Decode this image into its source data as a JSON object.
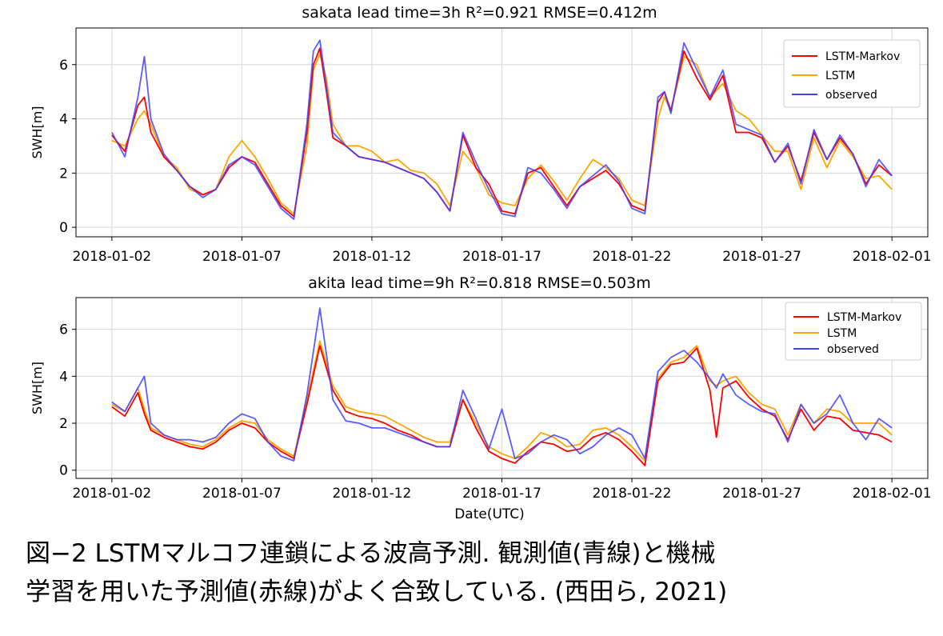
{
  "chart_data": [
    {
      "type": "line",
      "title": "sakata  lead time=3h  R²=0.921  RMSE=0.412m",
      "xlabel": "",
      "ylabel": "SWH[m]",
      "xlim": [
        "2018-01-02",
        "2018-02-01"
      ],
      "ylim": [
        0,
        7
      ],
      "xticks": [
        "2018-01-02",
        "2018-01-07",
        "2018-01-12",
        "2018-01-17",
        "2018-01-22",
        "2018-01-27",
        "2018-02-01"
      ],
      "yticks": [
        0,
        2,
        4,
        6
      ],
      "grid": true,
      "legend_position": "top-right",
      "x": [
        "2018-01-02 00:00",
        "2018-01-02 12:00",
        "2018-01-03 00:00",
        "2018-01-03 06:00",
        "2018-01-03 12:00",
        "2018-01-04 00:00",
        "2018-01-04 12:00",
        "2018-01-05 00:00",
        "2018-01-05 12:00",
        "2018-01-06 00:00",
        "2018-01-06 12:00",
        "2018-01-07 00:00",
        "2018-01-07 12:00",
        "2018-01-08 00:00",
        "2018-01-08 12:00",
        "2018-01-09 00:00",
        "2018-01-09 12:00",
        "2018-01-09 18:00",
        "2018-01-10 00:00",
        "2018-01-10 06:00",
        "2018-01-10 12:00",
        "2018-01-11 00:00",
        "2018-01-11 12:00",
        "2018-01-12 00:00",
        "2018-01-12 12:00",
        "2018-01-13 00:00",
        "2018-01-13 12:00",
        "2018-01-14 00:00",
        "2018-01-14 12:00",
        "2018-01-15 00:00",
        "2018-01-15 12:00",
        "2018-01-16 00:00",
        "2018-01-16 12:00",
        "2018-01-17 00:00",
        "2018-01-17 12:00",
        "2018-01-18 00:00",
        "2018-01-18 12:00",
        "2018-01-19 00:00",
        "2018-01-19 12:00",
        "2018-01-20 00:00",
        "2018-01-20 12:00",
        "2018-01-21 00:00",
        "2018-01-21 12:00",
        "2018-01-22 00:00",
        "2018-01-22 12:00",
        "2018-01-23 00:00",
        "2018-01-23 06:00",
        "2018-01-23 12:00",
        "2018-01-24 00:00",
        "2018-01-24 12:00",
        "2018-01-25 00:00",
        "2018-01-25 12:00",
        "2018-01-26 00:00",
        "2018-01-26 12:00",
        "2018-01-27 00:00",
        "2018-01-27 12:00",
        "2018-01-28 00:00",
        "2018-01-28 12:00",
        "2018-01-29 00:00",
        "2018-01-29 12:00",
        "2018-01-30 00:00",
        "2018-01-30 12:00",
        "2018-01-31 00:00",
        "2018-01-31 12:00",
        "2018-02-01 00:00"
      ],
      "series": [
        {
          "name": "LSTM-Markov",
          "color": "#ff0000",
          "values": [
            3.4,
            2.8,
            4.5,
            4.8,
            3.5,
            2.6,
            2.1,
            1.5,
            1.2,
            1.4,
            2.2,
            2.6,
            2.4,
            1.6,
            0.8,
            0.4,
            3.5,
            6.0,
            6.6,
            5.0,
            3.3,
            3.0,
            2.6,
            2.5,
            2.4,
            2.2,
            2.0,
            1.8,
            1.3,
            0.6,
            3.4,
            2.2,
            1.6,
            0.6,
            0.5,
            2.0,
            2.2,
            1.5,
            0.8,
            1.5,
            1.8,
            2.1,
            1.6,
            0.8,
            0.6,
            4.6,
            5.0,
            4.3,
            6.5,
            5.5,
            4.7,
            5.6,
            3.5,
            3.5,
            3.3,
            2.4,
            3.0,
            1.7,
            3.5,
            2.5,
            3.3,
            2.7,
            1.6,
            2.3,
            1.9
          ]
        },
        {
          "name": "LSTM",
          "color": "#ffa500",
          "values": [
            3.2,
            3.0,
            4.0,
            4.3,
            3.8,
            2.6,
            2.2,
            1.4,
            1.2,
            1.4,
            2.6,
            3.2,
            2.6,
            1.8,
            0.9,
            0.5,
            3.0,
            5.8,
            6.4,
            5.5,
            3.8,
            3.0,
            3.0,
            2.8,
            2.4,
            2.5,
            2.1,
            2.0,
            1.6,
            0.8,
            2.8,
            2.2,
            1.2,
            0.9,
            0.8,
            1.8,
            2.3,
            1.7,
            1.0,
            1.8,
            2.5,
            2.2,
            1.8,
            1.0,
            0.8,
            4.0,
            4.8,
            4.3,
            6.3,
            6.0,
            4.8,
            5.3,
            4.3,
            4.0,
            3.4,
            2.8,
            2.8,
            1.4,
            3.3,
            2.2,
            3.2,
            2.6,
            1.8,
            1.9,
            1.4
          ]
        },
        {
          "name": "observed",
          "color": "#4040ff",
          "values": [
            3.5,
            2.6,
            4.8,
            6.3,
            4.0,
            2.7,
            2.1,
            1.5,
            1.1,
            1.4,
            2.3,
            2.6,
            2.3,
            1.5,
            0.7,
            0.3,
            3.8,
            6.5,
            6.9,
            5.2,
            3.5,
            3.0,
            2.6,
            2.5,
            2.4,
            2.2,
            2.0,
            1.8,
            1.3,
            0.6,
            3.5,
            2.4,
            1.4,
            0.5,
            0.4,
            2.2,
            2.0,
            1.4,
            0.7,
            1.5,
            1.9,
            2.3,
            1.7,
            0.7,
            0.5,
            4.8,
            5.0,
            4.2,
            6.8,
            5.8,
            4.8,
            5.8,
            3.8,
            3.6,
            3.4,
            2.4,
            3.1,
            1.6,
            3.6,
            2.5,
            3.4,
            2.7,
            1.5,
            2.5,
            1.9
          ]
        }
      ]
    },
    {
      "type": "line",
      "title": "akita  lead time=9h  R²=0.818  RMSE=0.503m",
      "xlabel": "Date(UTC)",
      "ylabel": "SWH[m]",
      "xlim": [
        "2018-01-02",
        "2018-02-01"
      ],
      "ylim": [
        0,
        7
      ],
      "xticks": [
        "2018-01-02",
        "2018-01-07",
        "2018-01-12",
        "2018-01-17",
        "2018-01-22",
        "2018-01-27",
        "2018-02-01"
      ],
      "yticks": [
        0,
        2,
        4,
        6
      ],
      "grid": true,
      "legend_position": "top-right",
      "x": [
        "2018-01-02 00:00",
        "2018-01-02 12:00",
        "2018-01-03 00:00",
        "2018-01-03 06:00",
        "2018-01-03 12:00",
        "2018-01-04 00:00",
        "2018-01-04 12:00",
        "2018-01-05 00:00",
        "2018-01-05 12:00",
        "2018-01-06 00:00",
        "2018-01-06 12:00",
        "2018-01-07 00:00",
        "2018-01-07 12:00",
        "2018-01-08 00:00",
        "2018-01-08 12:00",
        "2018-01-09 00:00",
        "2018-01-09 12:00",
        "2018-01-10 00:00",
        "2018-01-10 12:00",
        "2018-01-11 00:00",
        "2018-01-11 12:00",
        "2018-01-12 00:00",
        "2018-01-12 12:00",
        "2018-01-13 00:00",
        "2018-01-13 12:00",
        "2018-01-14 00:00",
        "2018-01-14 12:00",
        "2018-01-15 00:00",
        "2018-01-15 12:00",
        "2018-01-16 00:00",
        "2018-01-16 12:00",
        "2018-01-17 00:00",
        "2018-01-17 12:00",
        "2018-01-18 00:00",
        "2018-01-18 12:00",
        "2018-01-19 00:00",
        "2018-01-19 12:00",
        "2018-01-20 00:00",
        "2018-01-20 12:00",
        "2018-01-21 00:00",
        "2018-01-21 12:00",
        "2018-01-22 00:00",
        "2018-01-22 12:00",
        "2018-01-23 00:00",
        "2018-01-23 12:00",
        "2018-01-24 00:00",
        "2018-01-24 12:00",
        "2018-01-25 00:00",
        "2018-01-25 06:00",
        "2018-01-25 12:00",
        "2018-01-26 00:00",
        "2018-01-26 12:00",
        "2018-01-27 00:00",
        "2018-01-27 12:00",
        "2018-01-28 00:00",
        "2018-01-28 12:00",
        "2018-01-29 00:00",
        "2018-01-29 12:00",
        "2018-01-30 00:00",
        "2018-01-30 12:00",
        "2018-01-31 00:00",
        "2018-01-31 12:00",
        "2018-02-01 00:00"
      ],
      "series": [
        {
          "name": "LSTM-Markov",
          "color": "#ff0000",
          "values": [
            2.7,
            2.3,
            3.3,
            2.4,
            1.7,
            1.4,
            1.2,
            1.0,
            0.9,
            1.2,
            1.7,
            2.0,
            1.8,
            1.2,
            0.8,
            0.5,
            2.8,
            5.3,
            3.4,
            2.5,
            2.3,
            2.2,
            2.0,
            1.7,
            1.5,
            1.2,
            1.0,
            1.0,
            3.0,
            1.8,
            0.8,
            0.5,
            0.3,
            0.8,
            1.2,
            1.1,
            0.8,
            0.9,
            1.4,
            1.6,
            1.3,
            0.8,
            0.2,
            3.8,
            4.5,
            4.6,
            5.2,
            3.4,
            1.4,
            3.5,
            3.8,
            3.1,
            2.6,
            2.3,
            1.3,
            2.6,
            1.7,
            2.3,
            2.2,
            1.7,
            1.6,
            1.5,
            1.2
          ]
        },
        {
          "name": "LSTM",
          "color": "#ffa500",
          "values": [
            2.8,
            2.5,
            3.5,
            2.6,
            1.8,
            1.5,
            1.3,
            1.1,
            1.0,
            1.3,
            1.8,
            2.1,
            2.0,
            1.3,
            0.9,
            0.6,
            3.0,
            5.5,
            3.6,
            2.7,
            2.5,
            2.4,
            2.3,
            2.0,
            1.7,
            1.4,
            1.2,
            1.2,
            3.0,
            2.0,
            1.0,
            0.7,
            0.5,
            1.0,
            1.6,
            1.4,
            1.0,
            1.1,
            1.7,
            1.8,
            1.5,
            1.0,
            0.4,
            3.9,
            4.6,
            4.8,
            5.3,
            3.8,
            3.6,
            3.8,
            4.0,
            3.3,
            2.8,
            2.6,
            1.5,
            2.8,
            2.0,
            2.6,
            2.5,
            2.0,
            2.0,
            2.0,
            1.5
          ]
        },
        {
          "name": "observed",
          "color": "#4040ff",
          "values": [
            2.9,
            2.5,
            3.5,
            4.0,
            2.0,
            1.5,
            1.3,
            1.3,
            1.2,
            1.4,
            2.0,
            2.4,
            2.2,
            1.2,
            0.6,
            0.4,
            3.2,
            6.9,
            3.0,
            2.1,
            2.0,
            1.8,
            1.8,
            1.6,
            1.4,
            1.2,
            1.0,
            1.0,
            3.4,
            2.2,
            0.9,
            2.6,
            0.5,
            0.7,
            1.2,
            1.5,
            1.3,
            0.7,
            1.0,
            1.5,
            1.8,
            1.5,
            0.5,
            4.2,
            4.8,
            5.1,
            4.6,
            3.9,
            3.5,
            4.1,
            3.2,
            2.8,
            2.5,
            2.4,
            1.2,
            2.8,
            2.0,
            2.4,
            3.2,
            2.0,
            1.3,
            2.2,
            1.8
          ]
        }
      ]
    }
  ],
  "caption": {
    "line1": "図−2 LSTMマルコフ連鎖による波高予測. 観測値(青線)と機械",
    "line2": "学習を用いた予測値(赤線)がよく合致している. (西田ら, 2021)"
  }
}
